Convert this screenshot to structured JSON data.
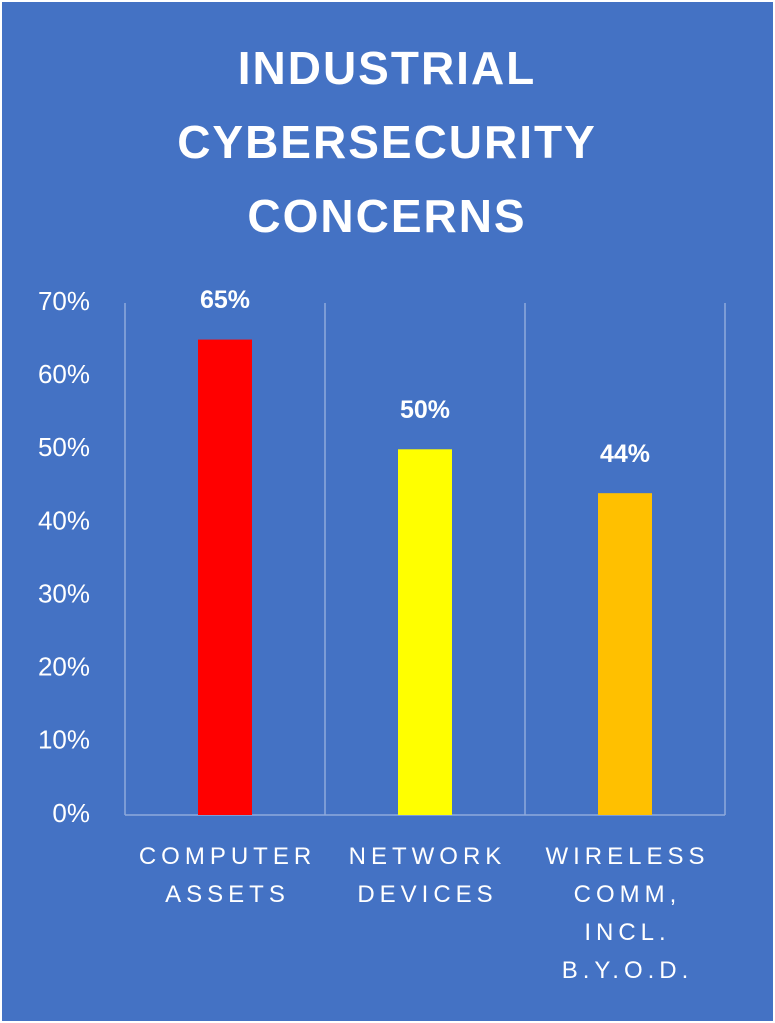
{
  "chart_data": {
    "type": "bar",
    "title": "INDUSTRIAL CYBERSECURITY CONCERNS",
    "categories": [
      "COMPUTER ASSETS",
      "NETWORK DEVICES",
      "WIRELESS COMM, INCL. B.Y.O.D."
    ],
    "values": [
      65,
      50,
      44
    ],
    "value_labels": [
      "65%",
      "50%",
      "44%"
    ],
    "colors": [
      "#ff0000",
      "#ffff00",
      "#ffc000"
    ],
    "ylim": [
      0,
      70
    ],
    "yticks": [
      {
        "value": 0,
        "label": "0%"
      },
      {
        "value": 10,
        "label": "10%"
      },
      {
        "value": 20,
        "label": "20%"
      },
      {
        "value": 30,
        "label": "30%"
      },
      {
        "value": 40,
        "label": "40%"
      },
      {
        "value": 50,
        "label": "50%"
      },
      {
        "value": 60,
        "label": "60%"
      },
      {
        "value": 70,
        "label": "70%"
      }
    ]
  }
}
